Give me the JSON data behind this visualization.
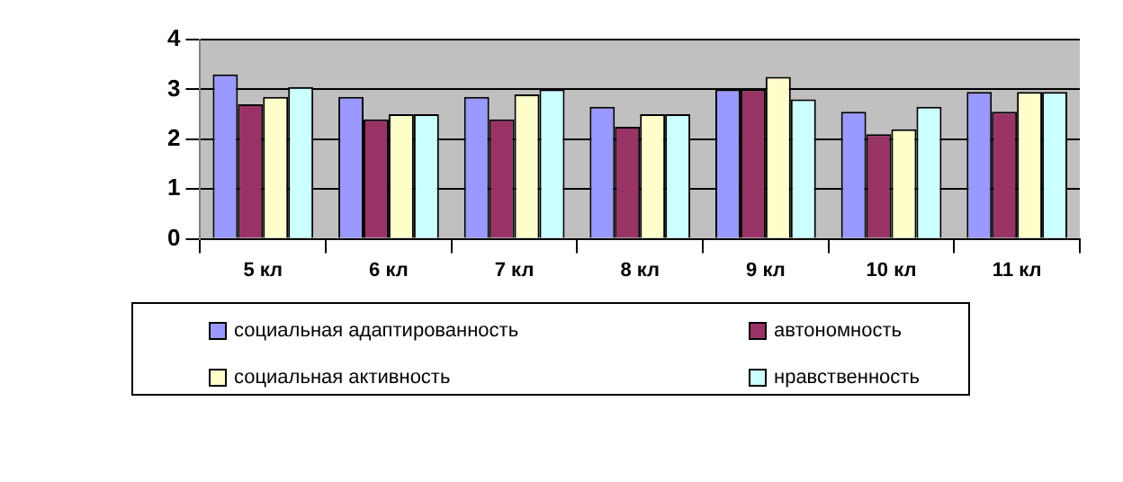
{
  "chart_data": {
    "type": "bar",
    "categories": [
      "5 кл",
      "6 кл",
      "7 кл",
      "8 кл",
      "9 кл",
      "10 кл",
      "11 кл"
    ],
    "series": [
      {
        "name": "социальная адаптированность",
        "color": "#9999ff",
        "values": [
          3.3,
          2.85,
          2.85,
          2.65,
          3.0,
          2.55,
          2.95
        ]
      },
      {
        "name": "автономность",
        "color": "#993366",
        "values": [
          2.7,
          2.4,
          2.4,
          2.25,
          3.0,
          2.1,
          2.55
        ]
      },
      {
        "name": "социальная активность",
        "color": "#ffffcc",
        "values": [
          2.85,
          2.5,
          2.9,
          2.5,
          3.25,
          2.2,
          2.95
        ]
      },
      {
        "name": "нравственность",
        "color": "#ccffff",
        "values": [
          3.05,
          2.5,
          3.0,
          2.5,
          2.8,
          2.65,
          2.95
        ]
      }
    ],
    "ylim": [
      0,
      4
    ],
    "yticks": [
      0,
      1,
      2,
      3,
      4
    ],
    "grid": "y",
    "legend": "bottom"
  }
}
